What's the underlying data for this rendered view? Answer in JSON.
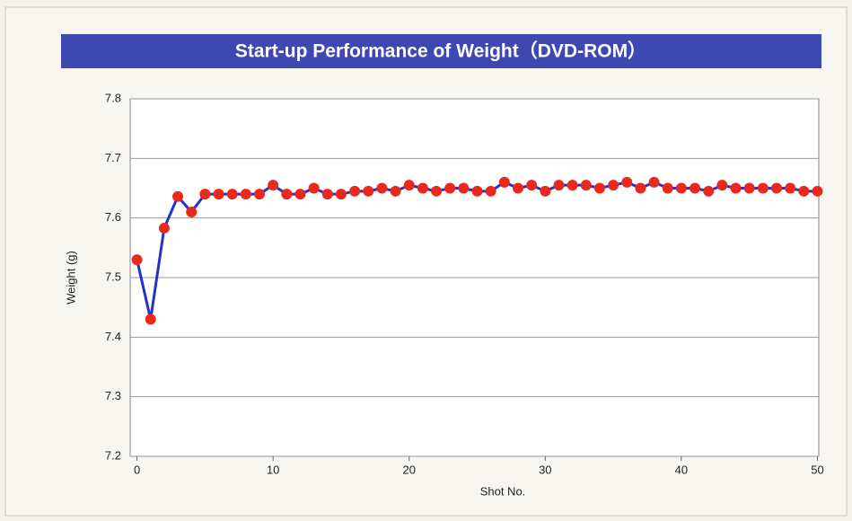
{
  "chart_data": {
    "type": "line",
    "title": "Start-up Performance of Weight（DVD-ROM）",
    "x_label": "Shot No.",
    "y_label": "Weight (g)",
    "x": [
      0,
      1,
      2,
      3,
      4,
      5,
      6,
      7,
      8,
      9,
      10,
      11,
      12,
      13,
      14,
      15,
      16,
      17,
      18,
      19,
      20,
      21,
      22,
      23,
      24,
      25,
      26,
      27,
      28,
      29,
      30,
      31,
      32,
      33,
      34,
      35,
      36,
      37,
      38,
      39,
      40,
      41,
      42,
      43,
      44,
      45,
      46,
      47,
      48,
      49,
      50
    ],
    "series": [
      {
        "color": "#2233cc",
        "marker_color": "#e8291c",
        "values": [
          7.53,
          7.43,
          7.583,
          7.636,
          7.61,
          7.64,
          7.64,
          7.64,
          7.64,
          7.64,
          7.655,
          7.64,
          7.64,
          7.65,
          7.64,
          7.64,
          7.645,
          7.645,
          7.65,
          7.645,
          7.655,
          7.65,
          7.645,
          7.65,
          7.65,
          7.645,
          7.645,
          7.66,
          7.65,
          7.655,
          7.645,
          7.655,
          7.655,
          7.655,
          7.65,
          7.655,
          7.66,
          7.65,
          7.66,
          7.65,
          7.65,
          7.65,
          7.645,
          7.655,
          7.65,
          7.65,
          7.65,
          7.65,
          7.65,
          7.645,
          7.645
        ]
      }
    ],
    "xlim": [
      -0.5,
      50.1
    ],
    "xticks": [
      0,
      10,
      20,
      30,
      40,
      50
    ],
    "ylim": [
      7.2,
      7.8
    ],
    "yticks": [
      7.2,
      7.3,
      7.4,
      7.5,
      7.6,
      7.7,
      7.8
    ],
    "grid": true
  }
}
